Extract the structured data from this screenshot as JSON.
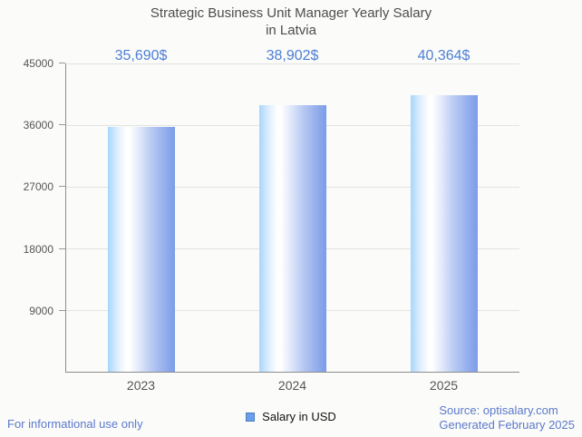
{
  "title": {
    "line1": "Strategic Business Unit Manager Yearly Salary",
    "line2": "in Latvia"
  },
  "chart_data": {
    "type": "bar",
    "title": "Strategic Business Unit Manager Yearly Salary in Latvia",
    "categories": [
      "2023",
      "2024",
      "2025"
    ],
    "values": [
      35690,
      38902,
      40364
    ],
    "value_labels": [
      "35,690$",
      "38,902$",
      "40,364$"
    ],
    "xlabel": "",
    "ylabel": "",
    "ylim": [
      0,
      45000
    ],
    "yticks": [
      45000,
      36000,
      27000,
      18000,
      9000
    ],
    "grid": true,
    "legend_position": "bottom",
    "series_name": "Salary in USD",
    "bar_gradient": [
      "#a7d6fd",
      "#ffffff",
      "#7b9ce9"
    ]
  },
  "legend": {
    "label": "Salary in USD",
    "swatch_color": "#6d9eeb"
  },
  "footer": {
    "left": "For informational use only",
    "source": "Source: optisalary.com",
    "generated": "Generated February 2025"
  },
  "colors": {
    "background": "#fbfbf9",
    "title_text": "#4d4d4d",
    "value_label_blue": "#4c7ed6",
    "footer_blue": "#5b79cd",
    "axis_gray": "#8d8d8d",
    "gridline_gray": "#e3e3e0",
    "tick_label_gray": "#565656"
  }
}
